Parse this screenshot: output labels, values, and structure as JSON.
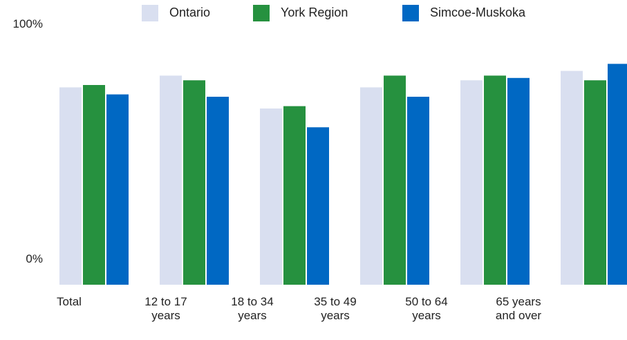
{
  "chart_data": {
    "type": "bar",
    "categories": [
      "Total",
      "12 to 17 years",
      "18 to 34 years",
      "35 to 49 years",
      "50 to 64 years",
      "65 years and over"
    ],
    "series": [
      {
        "name": "Ontario",
        "color": "#d9dff0",
        "values": [
          84,
          89,
          75,
          84,
          87,
          91
        ]
      },
      {
        "name": "York Region",
        "color": "#26913f",
        "values": [
          85,
          87,
          76,
          89,
          89,
          87
        ]
      },
      {
        "name": "Simcoe-Muskoka",
        "color": "#0068c3",
        "values": [
          81,
          80,
          67,
          80,
          88,
          94
        ]
      }
    ],
    "ylim": [
      0,
      100
    ],
    "yticks": [
      {
        "value": 0,
        "label": "0%"
      },
      {
        "value": 100,
        "label": "100%"
      }
    ],
    "legend": "top"
  }
}
